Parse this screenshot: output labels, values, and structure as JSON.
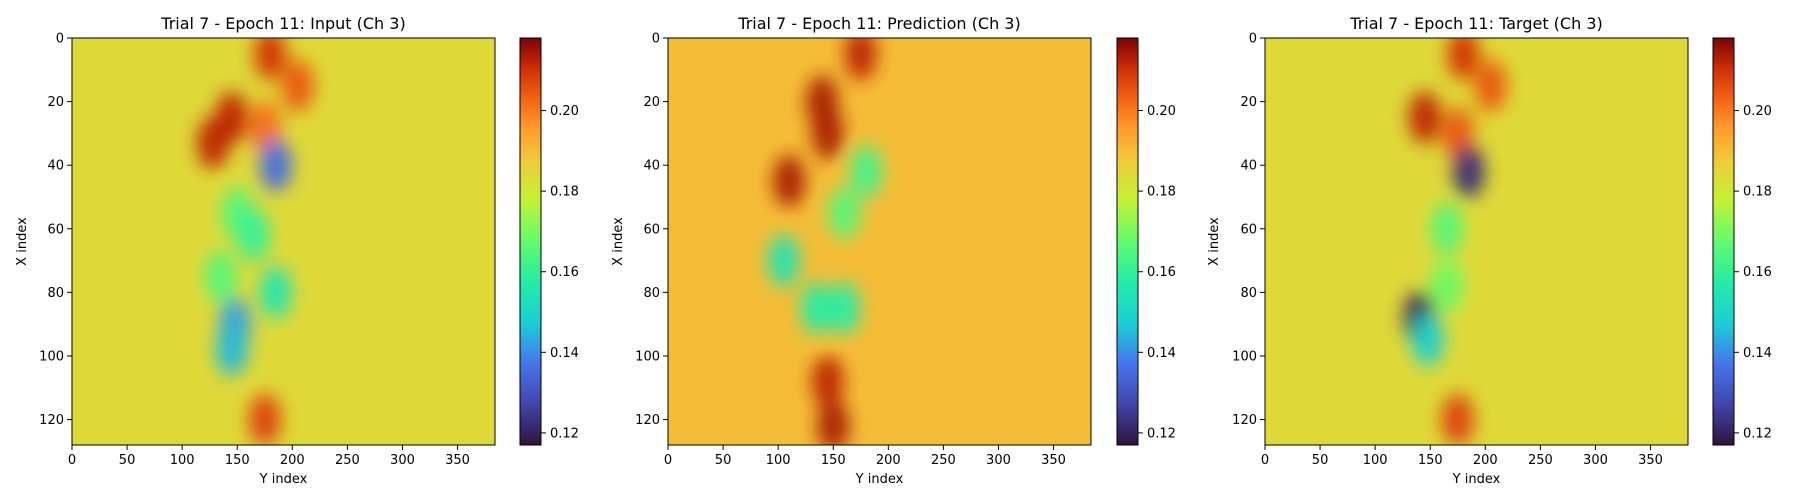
{
  "figure": {
    "background": "#ffffff"
  },
  "chart_data": [
    {
      "type": "heatmap",
      "title": "Trial 7 - Epoch 11: Input (Ch 3)",
      "xlabel": "Y index",
      "ylabel": "X index",
      "xlim": [
        0,
        384
      ],
      "ylim": [
        128,
        0
      ],
      "xticks": [
        0,
        50,
        100,
        150,
        200,
        250,
        300,
        350
      ],
      "yticks": [
        0,
        20,
        40,
        60,
        80,
        100,
        120
      ],
      "colormap": "turbo",
      "colorbar": {
        "vmin": 0.117,
        "vmax": 0.218,
        "ticks": [
          "0.12",
          "0.14",
          "0.16",
          "0.18",
          "0.20"
        ]
      },
      "background_value": 0.184,
      "features": [
        {
          "y": 15,
          "x": 205,
          "value": 0.205
        },
        {
          "y": 5,
          "x": 180,
          "value": 0.21
        },
        {
          "y": 25,
          "x": 145,
          "value": 0.212
        },
        {
          "y": 33,
          "x": 128,
          "value": 0.212
        },
        {
          "y": 28,
          "x": 175,
          "value": 0.202
        },
        {
          "y": 40,
          "x": 185,
          "value": 0.135
        },
        {
          "y": 55,
          "x": 150,
          "value": 0.165
        },
        {
          "y": 62,
          "x": 165,
          "value": 0.16
        },
        {
          "y": 75,
          "x": 135,
          "value": 0.165
        },
        {
          "y": 80,
          "x": 185,
          "value": 0.155
        },
        {
          "y": 90,
          "x": 148,
          "value": 0.142
        },
        {
          "y": 98,
          "x": 145,
          "value": 0.145
        },
        {
          "y": 120,
          "x": 175,
          "value": 0.208
        }
      ]
    },
    {
      "type": "heatmap",
      "title": "Trial 7 - Epoch 11: Prediction (Ch 3)",
      "xlabel": "Y index",
      "ylabel": "X index",
      "xlim": [
        0,
        384
      ],
      "ylim": [
        128,
        0
      ],
      "xticks": [
        0,
        50,
        100,
        150,
        200,
        250,
        300,
        350
      ],
      "yticks": [
        0,
        20,
        40,
        60,
        80,
        100,
        120
      ],
      "colormap": "turbo",
      "colorbar": {
        "vmin": 0.117,
        "vmax": 0.218,
        "ticks": [
          "0.12",
          "0.14",
          "0.16",
          "0.18",
          "0.20"
        ]
      },
      "background_value": 0.19,
      "features": [
        {
          "y": 5,
          "x": 175,
          "value": 0.212
        },
        {
          "y": 20,
          "x": 140,
          "value": 0.214
        },
        {
          "y": 30,
          "x": 145,
          "value": 0.214
        },
        {
          "y": 45,
          "x": 110,
          "value": 0.214
        },
        {
          "y": 55,
          "x": 160,
          "value": 0.165
        },
        {
          "y": 42,
          "x": 180,
          "value": 0.162
        },
        {
          "y": 70,
          "x": 105,
          "value": 0.155
        },
        {
          "y": 85,
          "x": 135,
          "value": 0.158
        },
        {
          "y": 85,
          "x": 160,
          "value": 0.158
        },
        {
          "y": 108,
          "x": 145,
          "value": 0.212
        },
        {
          "y": 122,
          "x": 150,
          "value": 0.214
        }
      ]
    },
    {
      "type": "heatmap",
      "title": "Trial 7 - Epoch 11: Target (Ch 3)",
      "xlabel": "Y index",
      "ylabel": "X index",
      "xlim": [
        0,
        384
      ],
      "ylim": [
        128,
        0
      ],
      "xticks": [
        0,
        50,
        100,
        150,
        200,
        250,
        300,
        350
      ],
      "yticks": [
        0,
        20,
        40,
        60,
        80,
        100,
        120
      ],
      "colormap": "turbo",
      "colorbar": {
        "vmin": 0.117,
        "vmax": 0.218,
        "ticks": [
          "0.12",
          "0.14",
          "0.16",
          "0.18",
          "0.20"
        ]
      },
      "background_value": 0.184,
      "features": [
        {
          "y": 15,
          "x": 205,
          "value": 0.205
        },
        {
          "y": 5,
          "x": 180,
          "value": 0.21
        },
        {
          "y": 25,
          "x": 145,
          "value": 0.212
        },
        {
          "y": 30,
          "x": 175,
          "value": 0.205
        },
        {
          "y": 42,
          "x": 185,
          "value": 0.122
        },
        {
          "y": 60,
          "x": 165,
          "value": 0.165
        },
        {
          "y": 78,
          "x": 165,
          "value": 0.168
        },
        {
          "y": 88,
          "x": 140,
          "value": 0.12
        },
        {
          "y": 95,
          "x": 148,
          "value": 0.148
        },
        {
          "y": 120,
          "x": 175,
          "value": 0.208
        }
      ]
    }
  ]
}
